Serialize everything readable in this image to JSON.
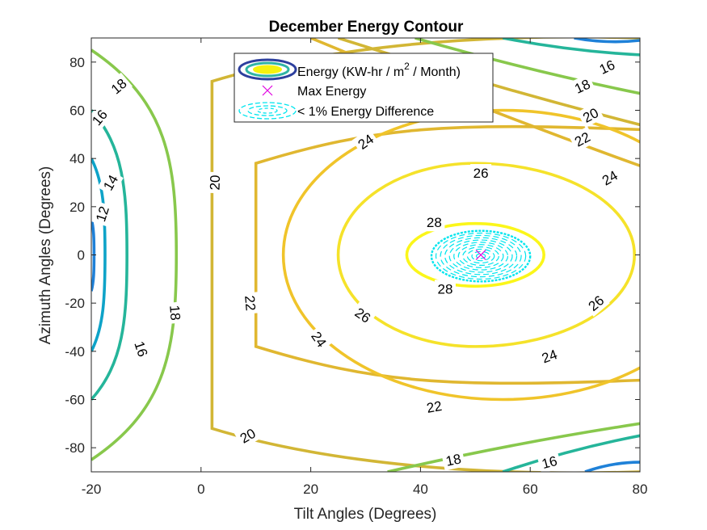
{
  "chart_data": {
    "type": "contour",
    "title": "December Energy Contour",
    "xlabel": "Tilt Angles (Degrees)",
    "ylabel": "Azimuth Angles (Degrees)",
    "xlim": [
      -20,
      80
    ],
    "ylim": [
      -90,
      90
    ],
    "xticks": [
      "-20",
      "0",
      "20",
      "40",
      "60",
      "80"
    ],
    "yticks": [
      "-80",
      "-60",
      "-40",
      "-20",
      "0",
      "20",
      "40",
      "60",
      "80"
    ],
    "grid": false,
    "legend": {
      "placement": "top-center",
      "entries": [
        {
          "label_main": "Energy (KW-hr / m",
          "label_sup": "2",
          "label_tail": " / Month)"
        },
        {
          "label": "Max Energy"
        },
        {
          "label": "< 1% Energy Difference"
        }
      ]
    },
    "max_energy_point": {
      "x": 51,
      "y": 0,
      "color": "#e000e0"
    },
    "near_max_region": {
      "x_range": [
        42,
        60
      ],
      "y_range": [
        -11,
        10
      ],
      "color": "#00e5ee"
    },
    "levels": [
      {
        "value": 12,
        "label": "12",
        "color": "#1f81d8",
        "shape": "left",
        "x_min": -20,
        "x_at_zero": -19.5,
        "y_half": 15,
        "labels": [
          {
            "x": -18,
            "y": 17,
            "angle": 72
          }
        ]
      },
      {
        "value": 14,
        "label": "14",
        "color": "#0ea3c8",
        "shape": "left",
        "x_min": -20,
        "x_at_zero": -17.5,
        "y_half": 40,
        "labels": [
          {
            "x": -16.5,
            "y": 30,
            "angle": 60
          }
        ]
      },
      {
        "value": 16,
        "label": "16",
        "color": "#25b59a",
        "shape": "left",
        "x_min": -20,
        "x_at_zero": -13.5,
        "y_half": 60,
        "labels": [
          {
            "x": -18.5,
            "y": 57,
            "angle": 50
          },
          {
            "x": -10.9,
            "y": -39,
            "angle": -72
          }
        ]
      },
      {
        "value": 18,
        "label": "18",
        "color": "#88c84c",
        "shape": "left",
        "x_min": -20,
        "x_at_zero": -4.5,
        "y_half": 85,
        "labels": [
          {
            "x": -15,
            "y": 70,
            "angle": 40
          },
          {
            "x": -4.7,
            "y": -24,
            "angle": -85
          }
        ]
      },
      {
        "value": 20,
        "label": "20",
        "color": "#d2b635",
        "shape": "right-open",
        "x_at_zero": 2,
        "vertical_half": 72,
        "corner": 10,
        "x_end": 80,
        "y_end": 90,
        "labels": [
          {
            "x": 2.5,
            "y": 30,
            "angle": 88
          },
          {
            "x": 8.5,
            "y": -75,
            "angle": 30
          }
        ]
      },
      {
        "value": 22,
        "label": "22",
        "color": "#e0b730",
        "shape": "right-open",
        "x_at_zero": 10,
        "vertical_half": 38,
        "corner": 22,
        "x_end": 80,
        "y_end": 52,
        "labels": [
          {
            "x": 9,
            "y": -20,
            "angle": -85
          },
          {
            "x": 42.5,
            "y": -63,
            "angle": 10
          }
        ]
      },
      {
        "value": 24,
        "label": "24",
        "color": "#f0c42a",
        "shape": "closed",
        "cx": 55,
        "rx_left": 40,
        "rx_right": 40,
        "ry": 60,
        "labels": [
          {
            "x": 30,
            "y": 47,
            "angle": 35
          },
          {
            "x": 21.5,
            "y": -35,
            "angle": -55
          },
          {
            "x": 63.5,
            "y": -42,
            "angle": 20
          },
          {
            "x": 74.5,
            "y": 32,
            "angle": 30
          }
        ]
      },
      {
        "value": 26,
        "label": "26",
        "color": "#f5e22a",
        "shape": "closed",
        "cx": 50,
        "rx_left": 25,
        "rx_right": 29,
        "ry": 38,
        "labels": [
          {
            "x": 51,
            "y": 34,
            "angle": 0
          },
          {
            "x": 29.5,
            "y": -25,
            "angle": -35
          },
          {
            "x": 72,
            "y": -20,
            "angle": 40
          }
        ]
      },
      {
        "value": 28,
        "label": "28",
        "color": "#fbf61a",
        "shape": "closed",
        "cx": 50,
        "rx_left": 12.5,
        "rx_right": 12.5,
        "ry": 13,
        "labels": [
          {
            "x": 42.5,
            "y": 13.5,
            "angle": 0
          },
          {
            "x": 44.5,
            "y": -14,
            "angle": 0
          }
        ]
      },
      {
        "value": 16,
        "label": "16",
        "color": "#25b59a",
        "shape": "corner-top",
        "points": [
          [
            55,
            90
          ],
          [
            80,
            83
          ]
        ],
        "labels": [
          {
            "x": 74,
            "y": 78,
            "angle": 25
          }
        ]
      },
      {
        "value": 18,
        "label": "18",
        "color": "#88c84c",
        "shape": "corner-top",
        "points": [
          [
            39,
            90
          ],
          [
            80,
            67
          ]
        ],
        "labels": [
          {
            "x": 69.5,
            "y": 70,
            "angle": 25
          }
        ]
      },
      {
        "value": 20,
        "label": "20",
        "color": "#d2b635",
        "shape": "corner-top",
        "points": [
          [
            25,
            90
          ],
          [
            80,
            54
          ]
        ],
        "labels": [
          {
            "x": 71,
            "y": 58,
            "angle": 28
          }
        ]
      },
      {
        "value": 22,
        "label": "22",
        "color": "#e0b730",
        "shape": "corner-top",
        "points": [
          [
            20,
            90
          ],
          [
            80,
            37
          ]
        ],
        "labels": [
          {
            "x": 69.5,
            "y": 48,
            "angle": 28
          }
        ]
      },
      {
        "value": 16,
        "label": "16",
        "color": "#25b59a",
        "shape": "corner-bottom",
        "points": [
          [
            55,
            -90
          ],
          [
            80,
            -75
          ]
        ],
        "labels": [
          {
            "x": 63.5,
            "y": -86,
            "angle": 15
          }
        ]
      },
      {
        "value": 18,
        "label": "18",
        "color": "#88c84c",
        "shape": "corner-bottom",
        "points": [
          [
            34,
            -90
          ],
          [
            80,
            -70
          ]
        ],
        "labels": [
          {
            "x": 46,
            "y": -85,
            "angle": 12
          }
        ]
      },
      {
        "value": 12,
        "label": "",
        "color": "#1f81d8",
        "shape": "corner-top",
        "points": [
          [
            68,
            90
          ],
          [
            80,
            89
          ]
        ],
        "labels": []
      },
      {
        "value": 12,
        "label": "",
        "color": "#1f81d8",
        "shape": "corner-bottom",
        "points": [
          [
            70,
            -90
          ],
          [
            80,
            -86
          ]
        ],
        "labels": []
      }
    ]
  }
}
